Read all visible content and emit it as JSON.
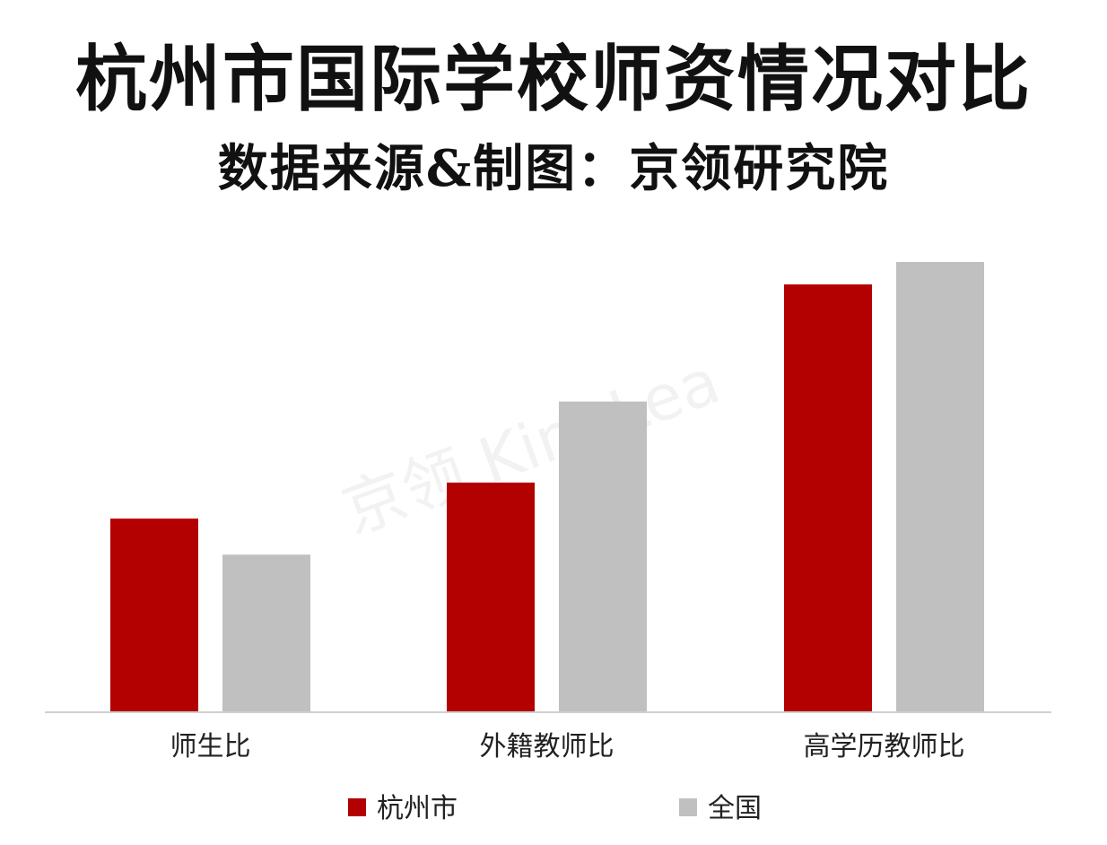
{
  "title": "杭州市国际学校师资情况对比",
  "subtitle": "数据来源&制图：京领研究院",
  "watermark": "京领 KingLea",
  "colors": {
    "hangzhou": "#b30000",
    "national": "#c0c0c0",
    "axis": "#d0d0d0",
    "text": "#222222"
  },
  "chart_data": {
    "type": "bar",
    "categories": [
      "师生比",
      "外籍教师比",
      "高学历教师比"
    ],
    "series": [
      {
        "name": "杭州市",
        "values": [
          0.43,
          0.51,
          0.95
        ]
      },
      {
        "name": "全国",
        "values": [
          0.35,
          0.69,
          1.0
        ]
      }
    ],
    "ylim": [
      0,
      1.0
    ],
    "grid": false,
    "legend": "bottom"
  }
}
